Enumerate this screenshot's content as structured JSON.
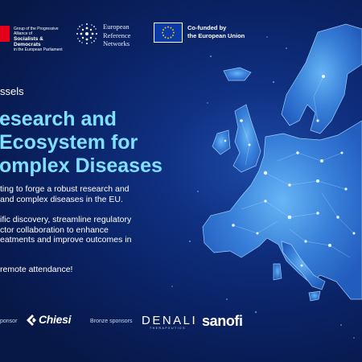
{
  "header": {
    "party_line1": "Group of the Progressive Alliance of",
    "party_line2": "Socialists & Democrats",
    "party_line3": "in the European Parliament",
    "ern_line1": "European",
    "ern_line2": "Reference",
    "ern_line3": "Networks",
    "eu_line1": "Co-funded by",
    "eu_line2": "the European Union"
  },
  "event": {
    "location": "ssels",
    "title_line1": "esearch and",
    "title_line2": "Ecosystem for",
    "title_line3": "omplex Diseases",
    "para1_line1": "ting to forge a robust research and",
    "para1_line2": "and complex diseases in the EU.",
    "para2_line1": "ific discovery, streamline regulatory",
    "para2_line2": "ctor collaboration to enhance",
    "para2_line3": "eatments and improve outcomes in",
    "para3": "remote attendance!"
  },
  "sponsors": {
    "label1": "ponsor",
    "sponsor1": "Chiesi",
    "label2": "Bronze sponsors",
    "sponsor2": "DENALI",
    "sponsor2_sub": "THERAPEUTICS",
    "sponsor3": "sanofi"
  },
  "colors": {
    "background": "#0a2264",
    "headline": "#7fe0ff",
    "map_fill": "#3f8fe8",
    "party_red": "#e4001b"
  }
}
